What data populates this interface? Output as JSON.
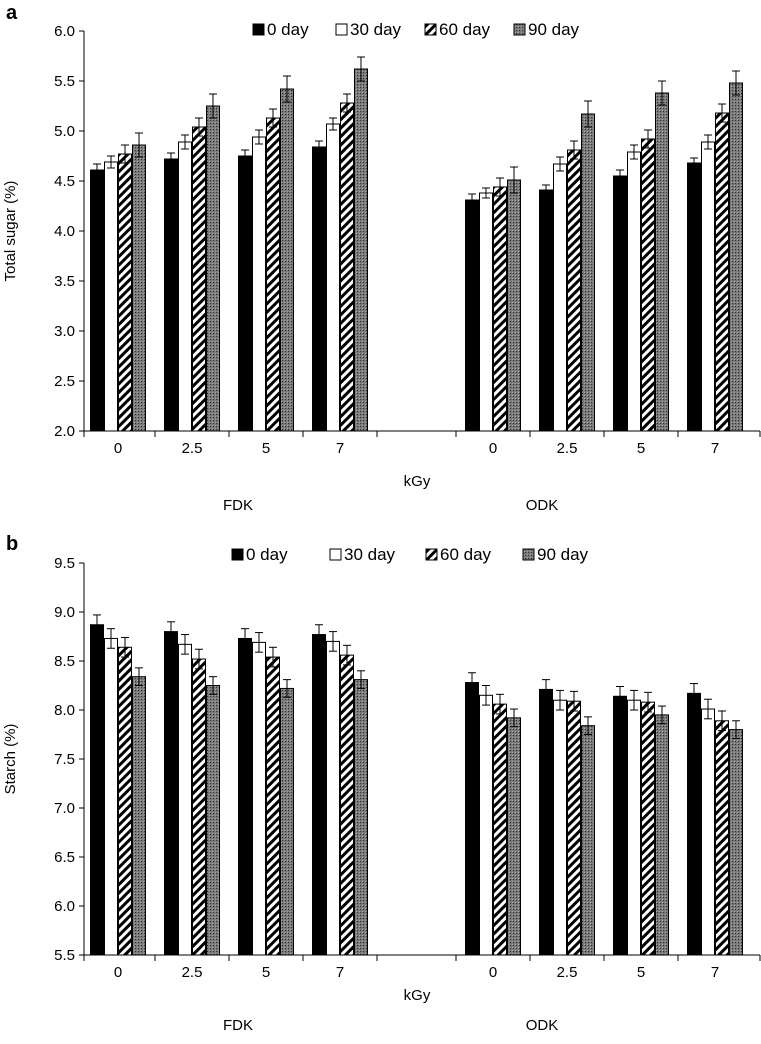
{
  "chart_data": [
    {
      "panel_label": "a",
      "type": "bar",
      "ylabel": "Total sugar (%)",
      "xlabel": "kGy",
      "ylim": [
        2.0,
        6.0
      ],
      "yticks": [
        "2.0",
        "2.5",
        "3.0",
        "3.5",
        "4.0",
        "4.5",
        "5.0",
        "5.5",
        "6.0"
      ],
      "groups": [
        "FDK",
        "ODK"
      ],
      "categories": [
        "0",
        "2.5",
        "5",
        "7",
        "0",
        "2.5",
        "5",
        "7"
      ],
      "legend_position": "top",
      "series": [
        {
          "name": "0 day",
          "style": "solid",
          "values": [
            4.61,
            4.72,
            4.75,
            4.84,
            4.31,
            4.41,
            4.55,
            4.68
          ],
          "errors": [
            0.06,
            0.06,
            0.06,
            0.06,
            0.06,
            0.05,
            0.06,
            0.05
          ]
        },
        {
          "name": "30 day",
          "style": "open",
          "values": [
            4.69,
            4.89,
            4.94,
            5.07,
            4.38,
            4.67,
            4.79,
            4.89
          ],
          "errors": [
            0.06,
            0.07,
            0.07,
            0.06,
            0.05,
            0.07,
            0.07,
            0.07
          ]
        },
        {
          "name": "60 day",
          "style": "hatch",
          "values": [
            4.77,
            5.04,
            5.13,
            5.28,
            4.44,
            4.81,
            4.92,
            5.18
          ],
          "errors": [
            0.09,
            0.09,
            0.09,
            0.09,
            0.09,
            0.09,
            0.09,
            0.09
          ]
        },
        {
          "name": "90 day",
          "style": "dotted",
          "values": [
            4.86,
            5.25,
            5.42,
            5.62,
            4.51,
            5.17,
            5.38,
            5.48
          ],
          "errors": [
            0.12,
            0.12,
            0.13,
            0.12,
            0.13,
            0.13,
            0.12,
            0.12
          ]
        }
      ],
      "grid": false
    },
    {
      "panel_label": "b",
      "type": "bar",
      "ylabel": "Starch (%)",
      "xlabel": "kGy",
      "ylim": [
        5.5,
        9.5
      ],
      "yticks": [
        "5.5",
        "6.0",
        "6.5",
        "7.0",
        "7.5",
        "8.0",
        "8.5",
        "9.0",
        "9.5"
      ],
      "groups": [
        "FDK",
        "ODK"
      ],
      "categories": [
        "0",
        "2.5",
        "5",
        "7",
        "0",
        "2.5",
        "5",
        "7"
      ],
      "legend_position": "top",
      "series": [
        {
          "name": "0 day",
          "style": "solid",
          "values": [
            8.87,
            8.8,
            8.73,
            8.77,
            8.28,
            8.21,
            8.14,
            8.17
          ],
          "errors": [
            0.1,
            0.1,
            0.1,
            0.1,
            0.1,
            0.1,
            0.1,
            0.1
          ]
        },
        {
          "name": "30 day",
          "style": "open",
          "values": [
            8.73,
            8.67,
            8.69,
            8.7,
            8.15,
            8.1,
            8.1,
            8.01
          ],
          "errors": [
            0.1,
            0.1,
            0.1,
            0.1,
            0.1,
            0.1,
            0.1,
            0.1
          ]
        },
        {
          "name": "60 day",
          "style": "hatch",
          "values": [
            8.64,
            8.52,
            8.54,
            8.56,
            8.06,
            8.09,
            8.08,
            7.89
          ],
          "errors": [
            0.1,
            0.1,
            0.1,
            0.1,
            0.1,
            0.1,
            0.1,
            0.1
          ]
        },
        {
          "name": "90 day",
          "style": "dotted",
          "values": [
            8.34,
            8.25,
            8.22,
            8.31,
            7.92,
            7.84,
            7.95,
            7.8
          ],
          "errors": [
            0.09,
            0.09,
            0.09,
            0.09,
            0.09,
            0.09,
            0.09,
            0.09
          ]
        }
      ],
      "grid": false
    }
  ]
}
